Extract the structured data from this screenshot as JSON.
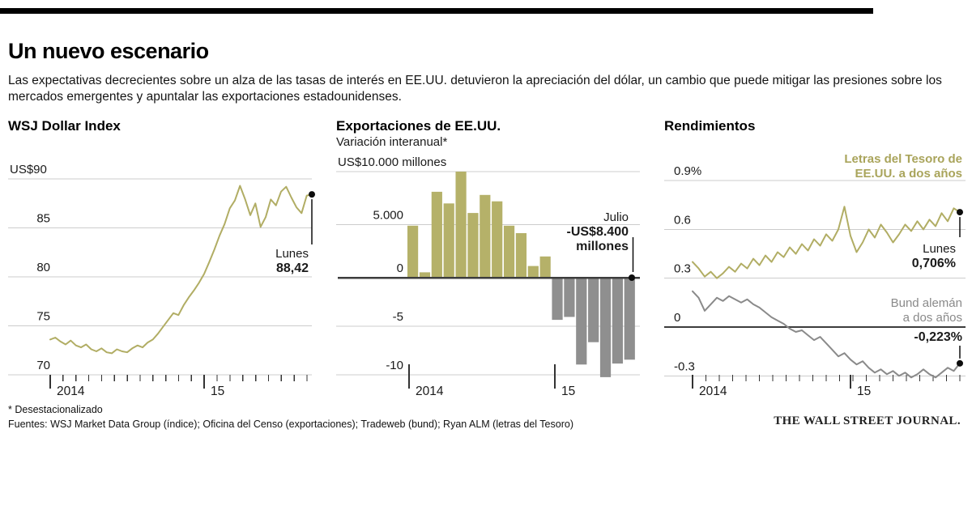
{
  "header": {
    "title": "Un nuevo escenario",
    "subtitle": "Las expectativas decrecientes sobre un alza de las tasas de interés en EE.UU. detuvieron la apreciación del dólar, un cambio que puede mitigar las presiones sobre los mercados emergentes y apuntalar las exportaciones estadounidenses."
  },
  "footer": {
    "footnote": "* Desestacionalizado",
    "sources": "Fuentes: WSJ Market Data Group (índice); Oficina del Censo (exportaciones); Tradeweb (bund); Ryan ALM (letras del Tesoro)",
    "brand": "THE WALL STREET JOURNAL."
  },
  "colors": {
    "olive": "#b1ad64",
    "olive_fill": "#b5b169",
    "olive_text": "#a9a45b",
    "gray": "#8a8a8a",
    "gray_fill": "#8f8f8f",
    "grid": "#cccccc",
    "axis": "#3d3d3d",
    "tick": "#333333",
    "text": "#1a1a1a",
    "black": "#0d0d0d"
  },
  "chart_data": [
    {
      "type": "line",
      "title": "WSJ Dollar Index",
      "ylim": [
        70,
        90
      ],
      "y_ticks": [
        {
          "v": 90,
          "label": "US$90"
        },
        {
          "v": 85,
          "label": "85"
        },
        {
          "v": 80,
          "label": "80"
        },
        {
          "v": 75,
          "label": "75"
        },
        {
          "v": 70,
          "label": "70"
        }
      ],
      "x_tick_labels": [
        "2014",
        "15"
      ],
      "x_range": "ene 2014 - sep 2015",
      "series": [
        {
          "name": "WSJ Dollar Index",
          "color": "olive",
          "values": [
            73.6,
            73.8,
            73.4,
            73.1,
            73.5,
            73.0,
            72.8,
            73.1,
            72.6,
            72.4,
            72.7,
            72.3,
            72.2,
            72.6,
            72.4,
            72.3,
            72.7,
            73.0,
            72.8,
            73.3,
            73.6,
            74.2,
            74.9,
            75.6,
            76.3,
            76.1,
            77.1,
            77.9,
            78.6,
            79.4,
            80.3,
            81.5,
            82.8,
            84.2,
            85.4,
            87.0,
            87.8,
            89.3,
            87.9,
            86.3,
            87.5,
            85.1,
            86.1,
            87.9,
            87.3,
            88.7,
            89.2,
            88.1,
            87.1,
            86.5,
            88.3,
            88.42
          ]
        }
      ],
      "annotation": {
        "line1": "Lunes",
        "line2": "88,42",
        "value": 88.42
      }
    },
    {
      "type": "bar",
      "title": "Exportaciones de EE.UU.",
      "subtitle": "Variación interanual*",
      "unit": "miles de millones de US$ (variación interanual)",
      "ylim": [
        -10,
        10
      ],
      "y_ticks": [
        {
          "v": 10,
          "label": "US$10.000 millones"
        },
        {
          "v": 5,
          "label": "5.000"
        },
        {
          "v": 0,
          "label": "0"
        },
        {
          "v": -5,
          "label": "-5"
        },
        {
          "v": -10,
          "label": "-10"
        }
      ],
      "x_tick_labels": [
        "2014",
        "15"
      ],
      "categories": [
        "ene 2014",
        "feb 2014",
        "mar 2014",
        "abr 2014",
        "may 2014",
        "jun 2014",
        "jul 2014",
        "ago 2014",
        "sep 2014",
        "oct 2014",
        "nov 2014",
        "dic 2014",
        "ene 2015",
        "feb 2015",
        "mar 2015",
        "abr 2015",
        "may 2015",
        "jun 2015",
        "jul 2015"
      ],
      "values": [
        4.9,
        0.5,
        8.1,
        7.0,
        10.0,
        6.1,
        7.8,
        7.2,
        4.9,
        4.2,
        1.1,
        2.0,
        -4.3,
        -4.0,
        -8.9,
        -6.6,
        -10.2,
        -8.8,
        -8.4
      ],
      "annotation": {
        "line1": "Julio",
        "line2": "-US$8.400",
        "line3": "millones",
        "value": -8.4
      }
    },
    {
      "type": "line",
      "title": "Rendimientos",
      "ylim": [
        -0.3,
        0.9
      ],
      "y_ticks": [
        {
          "v": 0.9,
          "label": "0.9%"
        },
        {
          "v": 0.6,
          "label": "0.6"
        },
        {
          "v": 0.3,
          "label": "0.3"
        },
        {
          "v": 0,
          "label": "0"
        },
        {
          "v": -0.3,
          "label": "-0.3"
        }
      ],
      "x_tick_labels": [
        "2014",
        "15"
      ],
      "x_range": "ene 2014 - sep 2015",
      "series": [
        {
          "name": "Letras del Tesoro de EE.UU. a dos años",
          "color": "olive",
          "legend_lines": [
            "Letras del Tesoro de",
            "EE.UU. a dos años"
          ],
          "values": [
            0.4,
            0.36,
            0.31,
            0.34,
            0.3,
            0.33,
            0.37,
            0.34,
            0.39,
            0.36,
            0.42,
            0.38,
            0.44,
            0.4,
            0.46,
            0.43,
            0.49,
            0.45,
            0.51,
            0.47,
            0.54,
            0.5,
            0.57,
            0.53,
            0.6,
            0.74,
            0.56,
            0.46,
            0.52,
            0.6,
            0.55,
            0.63,
            0.58,
            0.52,
            0.57,
            0.63,
            0.59,
            0.65,
            0.6,
            0.66,
            0.62,
            0.7,
            0.65,
            0.73,
            0.706
          ],
          "annotation": {
            "line1": "Lunes",
            "line2": "0,706%",
            "value": 0.706
          }
        },
        {
          "name": "Bund alemán a dos años",
          "color": "gray",
          "label_lines": [
            "Bund alemán",
            "a dos años"
          ],
          "values": [
            0.22,
            0.18,
            0.1,
            0.14,
            0.18,
            0.16,
            0.19,
            0.17,
            0.15,
            0.17,
            0.14,
            0.12,
            0.09,
            0.06,
            0.04,
            0.02,
            -0.01,
            -0.03,
            -0.02,
            -0.05,
            -0.08,
            -0.06,
            -0.1,
            -0.14,
            -0.18,
            -0.16,
            -0.2,
            -0.23,
            -0.21,
            -0.25,
            -0.28,
            -0.26,
            -0.29,
            -0.27,
            -0.3,
            -0.28,
            -0.31,
            -0.29,
            -0.26,
            -0.29,
            -0.31,
            -0.28,
            -0.25,
            -0.27,
            -0.223
          ],
          "annotation": {
            "line2": "-0,223%",
            "value": -0.223
          }
        }
      ]
    }
  ]
}
